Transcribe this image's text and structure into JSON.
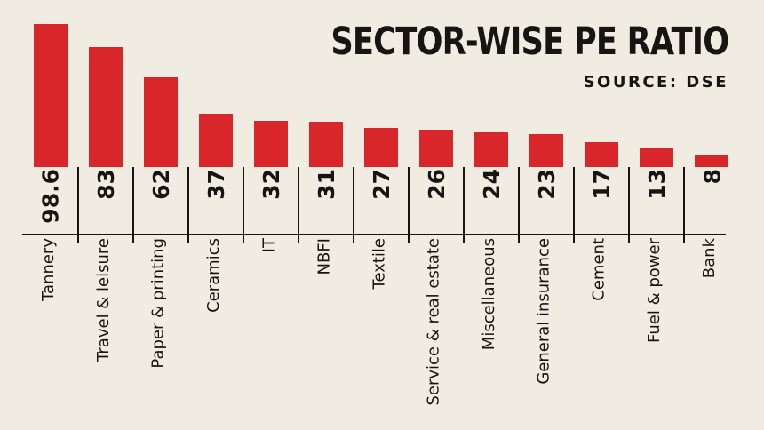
{
  "title": "SECTOR-WISE PE RATIO",
  "source": "SOURCE: DSE",
  "colors": {
    "background": "#f0ece2",
    "bar": "#d8262b",
    "text": "#181411",
    "line": "#181411"
  },
  "chart_data": {
    "type": "bar",
    "orientation": "vertical",
    "title": "SECTOR-WISE PE RATIO",
    "source": "SOURCE: DSE",
    "categories": [
      "Tannery",
      "Travel & leisure",
      "Paper & printing",
      "Ceramics",
      "IT",
      "NBFI",
      "Textile",
      "Service & real estate",
      "Miscellaneous",
      "General insurance",
      "Cement",
      "Fuel & power",
      "Bank"
    ],
    "values": [
      98.6,
      83,
      62,
      37,
      32,
      31,
      27,
      26,
      24,
      23,
      17,
      13,
      8
    ],
    "value_labels": [
      "98.6",
      "83",
      "62",
      "37",
      "32",
      "31",
      "27",
      "26",
      "24",
      "23",
      "17",
      "13",
      "8"
    ],
    "bar_color": "#d8262b",
    "ylim": [
      0,
      100
    ],
    "grid": false,
    "legend": false,
    "value_label_position": "below-bar-rotated",
    "category_label_position": "below-axis-rotated"
  }
}
